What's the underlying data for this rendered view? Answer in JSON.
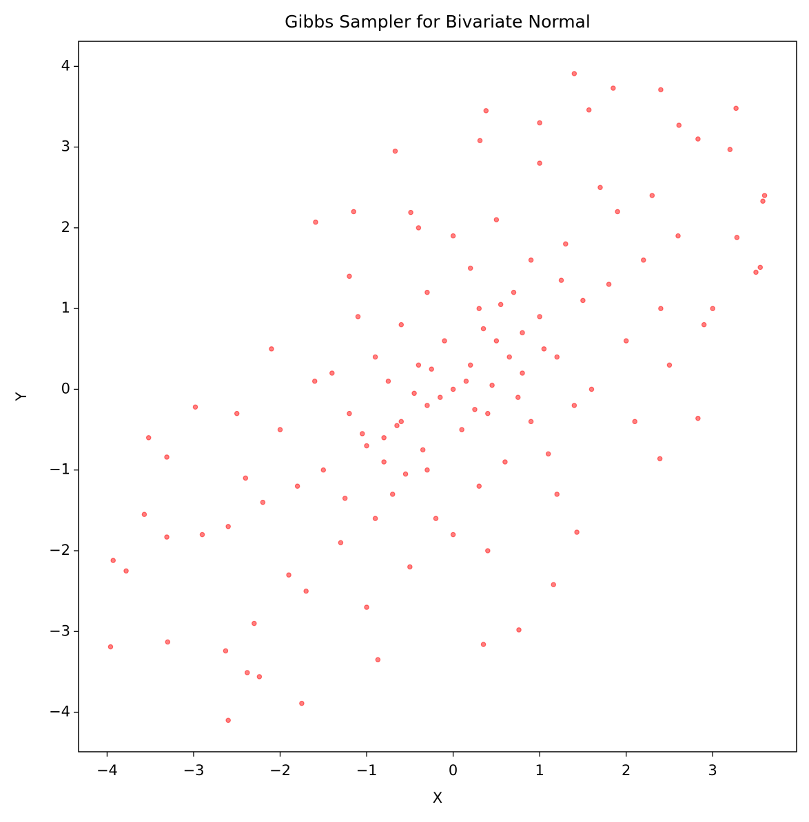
{
  "chart_data": {
    "type": "scatter",
    "title": "Gibbs Sampler for Bivariate Normal",
    "x_label": "X",
    "y_label": "Y",
    "color": "#ff0000",
    "alpha": 0.5,
    "grid": false,
    "xlim": [
      -4.33,
      3.97
    ],
    "ylim": [
      -4.49,
      4.31
    ],
    "xticks": [
      {
        "value": -4,
        "label": "−4"
      },
      {
        "value": -3,
        "label": "−3"
      },
      {
        "value": -2,
        "label": "−2"
      },
      {
        "value": -1,
        "label": "−1"
      },
      0,
      1,
      2,
      3
    ],
    "yticks": [
      {
        "value": -4,
        "label": "−4"
      },
      {
        "value": -3,
        "label": "−3"
      },
      {
        "value": -2,
        "label": "−2"
      },
      {
        "value": -1,
        "label": "−1"
      },
      0,
      1,
      2,
      3,
      4
    ],
    "x": [
      1.4,
      1.85,
      2.4,
      3.27,
      0.38,
      1.57,
      1.0,
      2.61,
      3.6,
      3.58,
      2.83,
      3.2,
      -0.67,
      0.31,
      -3.52,
      -3.93,
      -3.78,
      -3.96,
      -3.3,
      -2.6,
      -1.75,
      -2.38,
      -2.24,
      -0.87,
      0.35,
      0.76,
      -3.57,
      -3.31,
      -3.31,
      -2.98,
      -2.63,
      3.5,
      3.55,
      3.28,
      2.83,
      2.39,
      1.43,
      1.16,
      -1.15,
      -1.59,
      -0.49,
      0,
      0.2,
      -0.3,
      0.5,
      -0.6,
      0.8,
      -0.8,
      0.1,
      -0.1,
      0.4,
      -0.4,
      1.0,
      -1.0,
      0.7,
      -0.7,
      1.2,
      -1.2,
      0.3,
      -0.3,
      1.5,
      -1.5,
      0.9,
      -0.9,
      0.6,
      -0.6,
      1.8,
      -1.8,
      2.0,
      -2.0,
      1.3,
      -1.3,
      0.2,
      -0.2,
      1.1,
      -1.1,
      2.2,
      -2.2,
      0.0,
      0.0,
      1.6,
      -1.6,
      0.5,
      -0.5,
      2.4,
      -2.4,
      1.9,
      -1.9,
      0.9,
      -0.9,
      1.4,
      -1.4,
      0.3,
      -0.3,
      0.8,
      -0.8,
      0.15,
      -0.15,
      0.45,
      -0.45,
      0.25,
      -0.25,
      0.65,
      -0.65,
      1.05,
      -1.05,
      0.35,
      -0.35,
      0.55,
      -0.55,
      0.75,
      -0.75,
      1.25,
      -1.25,
      2.6,
      -2.6,
      2.9,
      -2.9,
      1.7,
      -1.7,
      3.0,
      2.5,
      -2.5,
      1.0,
      -1.0,
      2.1,
      -2.1,
      0.4,
      -0.4,
      1.2,
      -1.2,
      2.3,
      -2.3
    ],
    "values": [
      3.91,
      3.73,
      3.71,
      3.48,
      3.45,
      3.46,
      3.3,
      3.27,
      2.4,
      2.33,
      3.1,
      2.97,
      2.95,
      3.08,
      -0.6,
      -2.12,
      -2.25,
      -3.19,
      -3.13,
      -4.1,
      -3.89,
      -3.51,
      -3.56,
      -3.35,
      -3.16,
      -2.98,
      -1.55,
      -0.84,
      -1.83,
      -0.22,
      -3.24,
      1.45,
      1.51,
      1.88,
      -0.36,
      -0.86,
      -1.77,
      -2.42,
      2.2,
      2.07,
      2.19,
      0,
      0.3,
      -0.2,
      0.6,
      -0.4,
      0.2,
      -0.9,
      -0.5,
      0.6,
      -0.3,
      0.3,
      0.9,
      -0.7,
      1.2,
      -1.3,
      0.4,
      -0.3,
      1.0,
      -1.0,
      1.1,
      -1.0,
      -0.4,
      0.4,
      -0.9,
      0.8,
      1.3,
      -1.2,
      0.6,
      -0.5,
      1.8,
      -1.9,
      1.5,
      -1.6,
      -0.8,
      0.9,
      1.6,
      -1.4,
      1.9,
      -1.8,
      0.0,
      0.1,
      2.1,
      -2.2,
      1.0,
      -1.1,
      2.2,
      -2.3,
      1.6,
      -1.6,
      -0.2,
      0.2,
      -1.2,
      1.2,
      0.7,
      -0.6,
      0.1,
      -0.1,
      0.05,
      -0.05,
      -0.25,
      0.25,
      0.4,
      -0.45,
      0.5,
      -0.55,
      0.75,
      -0.75,
      1.05,
      -1.05,
      -0.1,
      0.1,
      1.35,
      -1.35,
      1.9,
      -1.7,
      0.8,
      -1.8,
      2.5,
      -2.5,
      1.0,
      0.3,
      -0.3,
      2.8,
      -2.7,
      -0.4,
      0.5,
      -2.0,
      2.0,
      -1.3,
      1.4,
      2.4,
      -2.9
    ]
  }
}
